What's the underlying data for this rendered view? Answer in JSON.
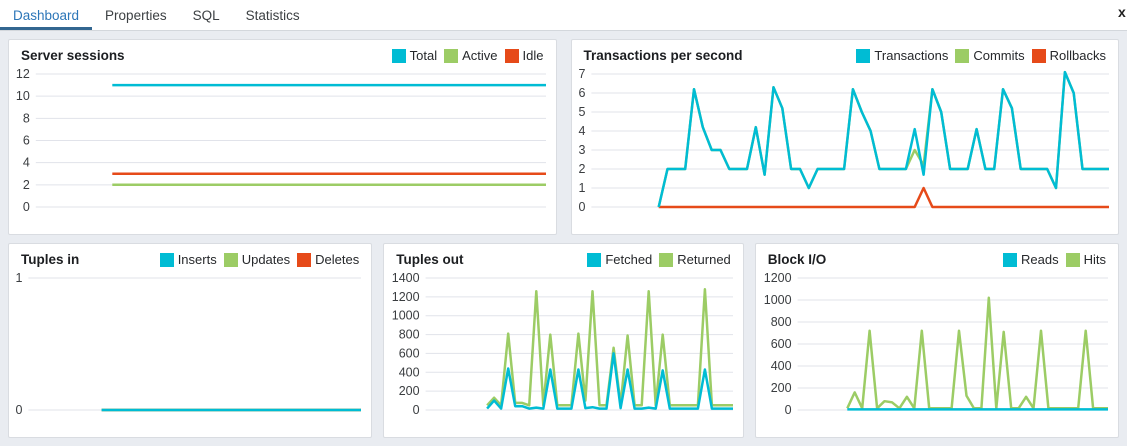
{
  "tabbar": {
    "tabs": [
      {
        "label": "Dashboard",
        "active": true
      },
      {
        "label": "Properties",
        "active": false
      },
      {
        "label": "SQL",
        "active": false
      },
      {
        "label": "Statistics",
        "active": false
      }
    ],
    "close_label": "x"
  },
  "colors": {
    "accent_cyan": "#00bcd4",
    "accent_green": "#9ccc65",
    "accent_red": "#e64a19",
    "tab_active_text": "#2c76b8",
    "tab_underline": "#326690",
    "gridline": "#e1e3ea",
    "axis_text": "#3a3d40"
  },
  "chart_data": [
    {
      "id": "server-sessions",
      "type": "line",
      "title": "Server sessions",
      "ylim": [
        0,
        12
      ],
      "yticks": [
        0,
        2,
        4,
        6,
        8,
        10,
        12
      ],
      "grid": true,
      "legend_position": "top-right",
      "start_frac": 0.15,
      "series": [
        {
          "name": "Total",
          "color": "#00bcd4",
          "values": [
            11,
            11
          ]
        },
        {
          "name": "Active",
          "color": "#9ccc65",
          "values": [
            2,
            2
          ]
        },
        {
          "name": "Idle",
          "color": "#e64a19",
          "values": [
            3,
            3
          ]
        }
      ]
    },
    {
      "id": "transactions",
      "type": "line",
      "title": "Transactions per second",
      "ylim": [
        0,
        7
      ],
      "yticks": [
        0,
        1,
        2,
        3,
        4,
        5,
        6,
        7
      ],
      "grid": true,
      "legend_position": "top-right",
      "start_frac": 0.13,
      "series": [
        {
          "name": "Transactions",
          "color": "#00bcd4",
          "values": [
            0,
            2,
            2,
            2,
            6.2,
            4.2,
            3,
            3,
            2,
            2,
            2,
            4.2,
            1.7,
            6.3,
            5.2,
            2,
            2,
            1,
            2,
            2,
            2,
            2,
            6.2,
            5,
            4,
            2,
            2,
            2,
            2,
            4.1,
            1.7,
            6.2,
            5,
            2,
            2,
            2,
            4.1,
            2,
            2,
            6.2,
            5.2,
            2,
            2,
            2,
            2,
            1,
            7.1,
            6,
            2,
            2,
            2,
            2
          ]
        },
        {
          "name": "Commits",
          "color": "#9ccc65",
          "values": [
            0,
            2,
            2,
            2,
            6.2,
            4.2,
            3,
            3,
            2,
            2,
            2,
            4.2,
            1.7,
            6.3,
            5.2,
            2,
            2,
            1,
            2,
            2,
            2,
            2,
            6.2,
            5,
            4,
            2,
            2,
            2,
            2,
            3,
            2.2,
            6.2,
            5,
            2,
            2,
            2,
            4.1,
            2,
            2,
            6.2,
            5.2,
            2,
            2,
            2,
            2,
            1,
            7.1,
            6,
            2,
            2,
            2,
            2
          ]
        },
        {
          "name": "Rollbacks",
          "color": "#e64a19",
          "values": [
            0,
            0,
            0,
            0,
            0,
            0,
            0,
            0,
            0,
            0,
            0,
            0,
            0,
            0,
            0,
            0,
            0,
            0,
            0,
            0,
            0,
            0,
            0,
            0,
            0,
            0,
            0,
            0,
            0,
            0,
            1,
            0,
            0,
            0,
            0,
            0,
            0,
            0,
            0,
            0,
            0,
            0,
            0,
            0,
            0,
            0,
            0,
            0,
            0,
            0,
            0,
            0
          ]
        }
      ]
    },
    {
      "id": "tuples-in",
      "type": "line",
      "title": "Tuples in",
      "ylim": [
        0,
        1
      ],
      "yticks": [
        0,
        1
      ],
      "grid": true,
      "legend_position": "top-right",
      "start_frac": 0.22,
      "series": [
        {
          "name": "Inserts",
          "color": "#00bcd4",
          "values": [
            0,
            0
          ]
        },
        {
          "name": "Updates",
          "color": "#9ccc65",
          "values": [
            0,
            0
          ]
        },
        {
          "name": "Deletes",
          "color": "#e64a19",
          "values": [
            0,
            0
          ]
        }
      ]
    },
    {
      "id": "tuples-out",
      "type": "line",
      "title": "Tuples out",
      "ylim": [
        0,
        1400
      ],
      "yticks": [
        0,
        200,
        400,
        600,
        800,
        1000,
        1200,
        1400
      ],
      "grid": true,
      "legend_position": "top-right",
      "start_frac": 0.2,
      "series": [
        {
          "name": "Fetched",
          "color": "#00bcd4",
          "values": [
            15,
            100,
            15,
            440,
            40,
            40,
            15,
            25,
            15,
            430,
            15,
            15,
            15,
            430,
            20,
            30,
            15,
            15,
            600,
            20,
            430,
            15,
            15,
            25,
            15,
            420,
            15,
            15,
            15,
            15,
            15,
            430,
            15,
            15,
            15,
            15
          ]
        },
        {
          "name": "Returned",
          "color": "#9ccc65",
          "values": [
            50,
            130,
            50,
            810,
            75,
            75,
            50,
            1260,
            50,
            800,
            50,
            50,
            50,
            810,
            100,
            1260,
            50,
            50,
            660,
            60,
            790,
            50,
            50,
            1260,
            50,
            800,
            50,
            50,
            50,
            50,
            50,
            1280,
            50,
            50,
            50,
            50
          ]
        }
      ]
    },
    {
      "id": "block-io",
      "type": "line",
      "title": "Block I/O",
      "ylim": [
        0,
        1200
      ],
      "yticks": [
        0,
        200,
        400,
        600,
        800,
        1000,
        1200
      ],
      "grid": true,
      "legend_position": "top-right",
      "start_frac": 0.16,
      "series": [
        {
          "name": "Reads",
          "color": "#00bcd4",
          "values": [
            5,
            5
          ]
        },
        {
          "name": "Hits",
          "color": "#9ccc65",
          "values": [
            15,
            160,
            15,
            720,
            15,
            80,
            70,
            15,
            120,
            15,
            720,
            15,
            15,
            15,
            15,
            720,
            130,
            15,
            15,
            1020,
            15,
            710,
            15,
            15,
            120,
            15,
            720,
            15,
            15,
            15,
            15,
            15,
            720,
            15,
            15,
            15
          ]
        }
      ]
    }
  ]
}
